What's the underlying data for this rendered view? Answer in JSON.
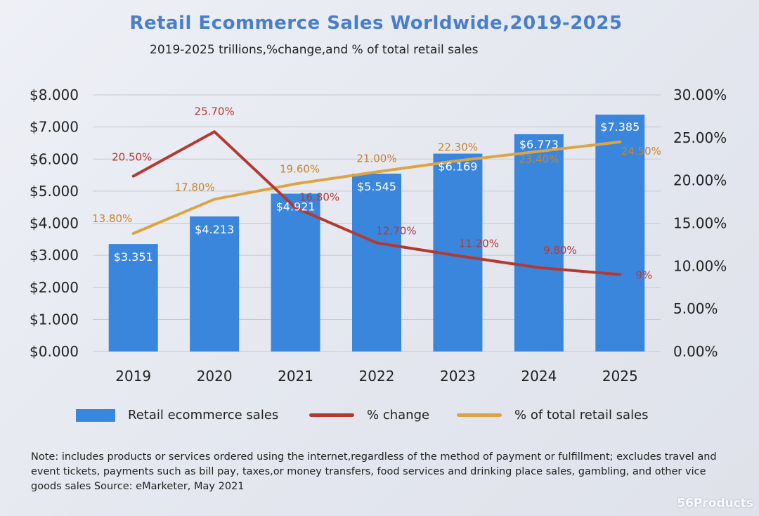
{
  "chart_data": {
    "type": "bar",
    "title": "Retail Ecommerce Sales Worldwide,2019-2025",
    "subtitle": "2019-2025 trillions,%change,and % of total retail sales",
    "categories": [
      "2019",
      "2020",
      "2021",
      "2022",
      "2023",
      "2024",
      "2025"
    ],
    "ylim": [
      0,
      8
    ],
    "y2lim": [
      0,
      30
    ],
    "y_ticks": [
      "$0.000",
      "$1.000",
      "$2.000",
      "$3.000",
      "$4.000",
      "$5.000",
      "$6.000",
      "$7.000",
      "$8.000"
    ],
    "y2_ticks": [
      "0.00%",
      "5.00%",
      "10.00%",
      "15.00%",
      "20.00%",
      "25.00%",
      "30.00%"
    ],
    "grid": true,
    "legend_position": "bottom",
    "series": [
      {
        "name": "Retail ecommerce sales",
        "type": "bar",
        "axis": "left",
        "color": "#3b86dd",
        "values": [
          3.351,
          4.213,
          4.921,
          5.545,
          6.169,
          6.773,
          7.385
        ],
        "labels": [
          "$3.351",
          "$4.213",
          "$4.921",
          "$5.545",
          "$6.169",
          "$6.773",
          "$7.385"
        ]
      },
      {
        "name": "% change",
        "type": "line",
        "axis": "right",
        "color": "#b23a32",
        "values": [
          20.5,
          25.7,
          16.8,
          12.7,
          11.2,
          9.8,
          9
        ],
        "labels": [
          "20.50%",
          "25.70%",
          "16.80%",
          "12.70%",
          "11.20%",
          "9.80%",
          "9%"
        ]
      },
      {
        "name": "% of total retail sales",
        "type": "line",
        "axis": "right",
        "color": "#dca544",
        "values": [
          13.8,
          17.8,
          19.6,
          21.0,
          22.3,
          23.4,
          24.5
        ],
        "labels": [
          "13.80%",
          "17.80%",
          "19.60%",
          "21.00%",
          "22.30%",
          "23.40%",
          "24.50%"
        ]
      }
    ]
  },
  "note": "Note: includes products or services ordered using the internet,regardless of the method of payment or fulfillment; excludes travel and event tickets, payments such as bill pay, taxes,or money transfers, food services and drinking place sales, gambling, and other vice goods sales Source: eMarketer, May 2021",
  "watermark": "56Products"
}
